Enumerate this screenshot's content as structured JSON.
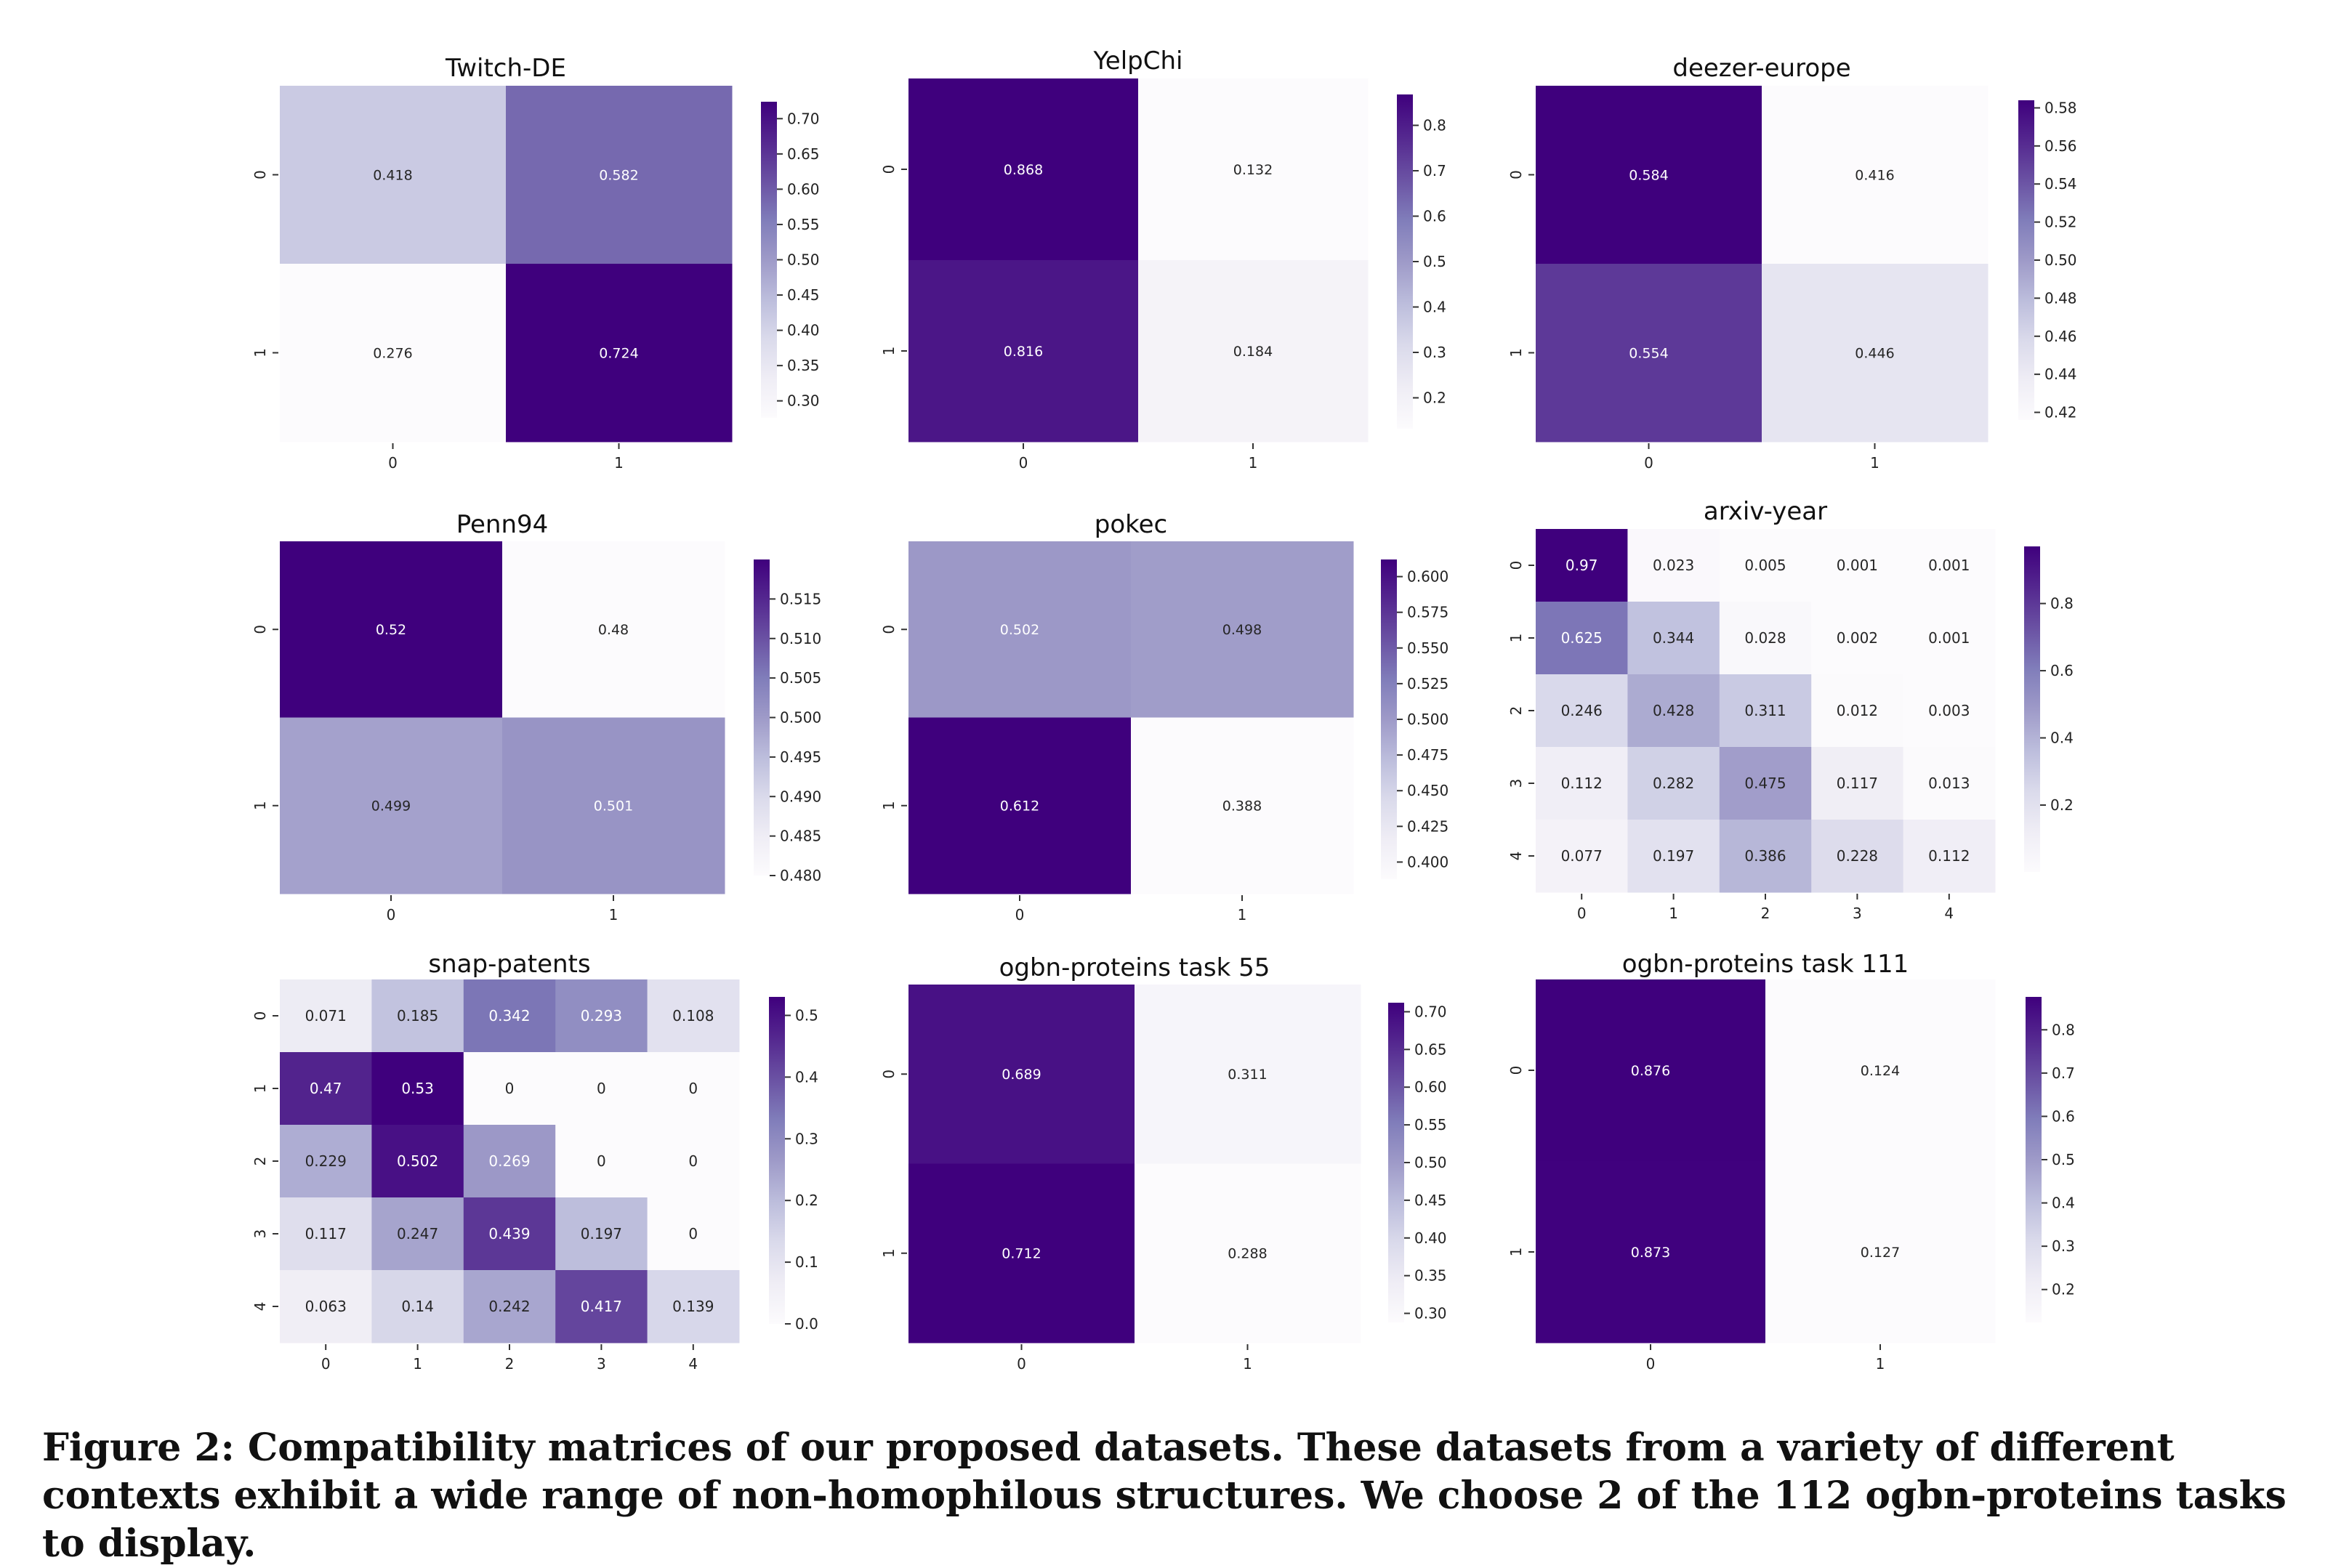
{
  "caption": "Figure 2: Compatibility matrices of our proposed datasets. These datasets from a variety of different contexts exhibit a wide range of non-homophilous structures. We choose 2 of the 112 ogbn-proteins tasks to display.",
  "colors": {
    "low": "#fcfbfd",
    "high": "#3f007d",
    "text_dark": "#262626",
    "text_light": "#ffffff"
  },
  "chart_data": [
    {
      "type": "heatmap",
      "title": "Twitch-DE",
      "row_labels": [
        "0",
        "1"
      ],
      "col_labels": [
        "0",
        "1"
      ],
      "values": [
        [
          0.418,
          0.582
        ],
        [
          0.276,
          0.724
        ]
      ],
      "vmin": 0.276,
      "vmax": 0.724,
      "colorbar_ticks": [
        "0.30",
        "0.35",
        "0.40",
        "0.45",
        "0.50",
        "0.55",
        "0.60",
        "0.65",
        "0.70"
      ]
    },
    {
      "type": "heatmap",
      "title": "YelpChi",
      "row_labels": [
        "0",
        "1"
      ],
      "col_labels": [
        "0",
        "1"
      ],
      "values": [
        [
          0.868,
          0.132
        ],
        [
          0.816,
          0.184
        ]
      ],
      "vmin": 0.132,
      "vmax": 0.868,
      "colorbar_ticks": [
        "0.2",
        "0.3",
        "0.4",
        "0.5",
        "0.6",
        "0.7",
        "0.8"
      ]
    },
    {
      "type": "heatmap",
      "title": "deezer-europe",
      "row_labels": [
        "0",
        "1"
      ],
      "col_labels": [
        "0",
        "1"
      ],
      "values": [
        [
          0.584,
          0.416
        ],
        [
          0.554,
          0.446
        ]
      ],
      "vmin": 0.416,
      "vmax": 0.584,
      "colorbar_ticks": [
        "0.42",
        "0.44",
        "0.46",
        "0.48",
        "0.50",
        "0.52",
        "0.54",
        "0.56",
        "0.58"
      ]
    },
    {
      "type": "heatmap",
      "title": "Penn94",
      "row_labels": [
        "0",
        "1"
      ],
      "col_labels": [
        "0",
        "1"
      ],
      "values": [
        [
          0.52,
          0.48
        ],
        [
          0.499,
          0.501
        ]
      ],
      "vmin": 0.48,
      "vmax": 0.52,
      "colorbar_ticks": [
        "0.480",
        "0.485",
        "0.490",
        "0.495",
        "0.500",
        "0.505",
        "0.510",
        "0.515"
      ]
    },
    {
      "type": "heatmap",
      "title": "pokec",
      "row_labels": [
        "0",
        "1"
      ],
      "col_labels": [
        "0",
        "1"
      ],
      "values": [
        [
          0.502,
          0.498
        ],
        [
          0.612,
          0.388
        ]
      ],
      "vmin": 0.388,
      "vmax": 0.612,
      "colorbar_ticks": [
        "0.400",
        "0.425",
        "0.450",
        "0.475",
        "0.500",
        "0.525",
        "0.550",
        "0.575",
        "0.600"
      ]
    },
    {
      "type": "heatmap",
      "title": "arxiv-year",
      "row_labels": [
        "0",
        "1",
        "2",
        "3",
        "4"
      ],
      "col_labels": [
        "0",
        "1",
        "2",
        "3",
        "4"
      ],
      "values": [
        [
          0.97,
          0.023,
          0.005,
          0.001,
          0.001
        ],
        [
          0.625,
          0.344,
          0.028,
          0.002,
          0.001
        ],
        [
          0.246,
          0.428,
          0.311,
          0.012,
          0.003
        ],
        [
          0.112,
          0.282,
          0.475,
          0.117,
          0.013
        ],
        [
          0.077,
          0.197,
          0.386,
          0.228,
          0.112
        ]
      ],
      "vmin": 0.001,
      "vmax": 0.97,
      "colorbar_ticks": [
        "0.2",
        "0.4",
        "0.6",
        "0.8"
      ]
    },
    {
      "type": "heatmap",
      "title": "snap-patents",
      "row_labels": [
        "0",
        "1",
        "2",
        "3",
        "4"
      ],
      "col_labels": [
        "0",
        "1",
        "2",
        "3",
        "4"
      ],
      "values": [
        [
          0.071,
          0.185,
          0.342,
          0.293,
          0.108
        ],
        [
          0.47,
          0.53,
          0,
          0,
          0
        ],
        [
          0.229,
          0.502,
          0.269,
          0,
          0
        ],
        [
          0.117,
          0.247,
          0.439,
          0.197,
          0
        ],
        [
          0.063,
          0.14,
          0.242,
          0.417,
          0.139
        ]
      ],
      "vmin": 0,
      "vmax": 0.53,
      "colorbar_ticks": [
        "0.0",
        "0.1",
        "0.2",
        "0.3",
        "0.4",
        "0.5"
      ]
    },
    {
      "type": "heatmap",
      "title": "ogbn-proteins task 55",
      "row_labels": [
        "0",
        "1"
      ],
      "col_labels": [
        "0",
        "1"
      ],
      "values": [
        [
          0.689,
          0.311
        ],
        [
          0.712,
          0.288
        ]
      ],
      "vmin": 0.288,
      "vmax": 0.712,
      "colorbar_ticks": [
        "0.30",
        "0.35",
        "0.40",
        "0.45",
        "0.50",
        "0.55",
        "0.60",
        "0.65",
        "0.70"
      ]
    },
    {
      "type": "heatmap",
      "title": "ogbn-proteins task 111",
      "row_labels": [
        "0",
        "1"
      ],
      "col_labels": [
        "0",
        "1"
      ],
      "values": [
        [
          0.876,
          0.124
        ],
        [
          0.873,
          0.127
        ]
      ],
      "vmin": 0.124,
      "vmax": 0.876,
      "colorbar_ticks": [
        "0.2",
        "0.3",
        "0.4",
        "0.5",
        "0.6",
        "0.7",
        "0.8"
      ]
    }
  ]
}
